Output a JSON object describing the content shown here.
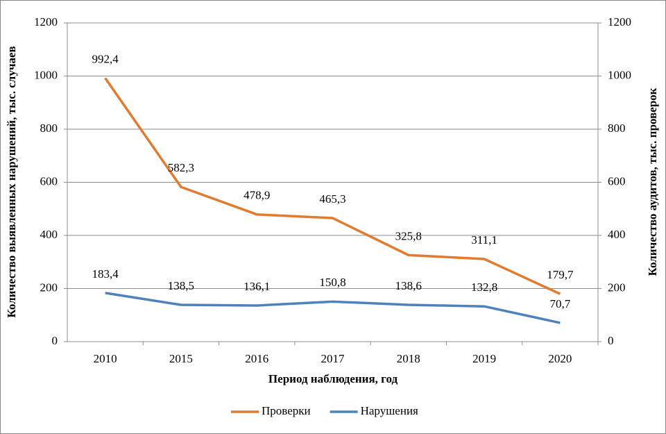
{
  "chart_data": {
    "type": "line",
    "x_label": "Период наблюдения, год",
    "y_label": "Количество выявленных нарушений, тыс. случаев",
    "y2_label": "Количество аудитов, тыс. проверок",
    "categories": [
      "2010",
      "2015",
      "2016",
      "2017",
      "2018",
      "2019",
      "2020"
    ],
    "series": [
      {
        "name": "Проверки",
        "color": "#e07b2f",
        "axis": "y2",
        "values": [
          992.4,
          582.3,
          478.9,
          465.3,
          325.8,
          311.1,
          179.7
        ],
        "value_labels": [
          "992,4",
          "582,3",
          "478,9",
          "465,3",
          "325,8",
          "311,1",
          "179,7"
        ]
      },
      {
        "name": "Нарушения",
        "color": "#4f81bd",
        "values": [
          183.4,
          138.5,
          136.1,
          150.8,
          138.6,
          132.8,
          70.7
        ],
        "value_labels": [
          "183,4",
          "138,5",
          "136,1",
          "150,8",
          "138,6",
          "132,8",
          "70,7"
        ]
      }
    ],
    "ylim": [
      0,
      1200
    ],
    "yticks": [
      0,
      200,
      400,
      600,
      800,
      1000,
      1200
    ],
    "y2lim": [
      0,
      1200
    ],
    "y2ticks": [
      0,
      200,
      400,
      600,
      800,
      1000,
      1200
    ],
    "grid": true,
    "legend": "bottom"
  }
}
